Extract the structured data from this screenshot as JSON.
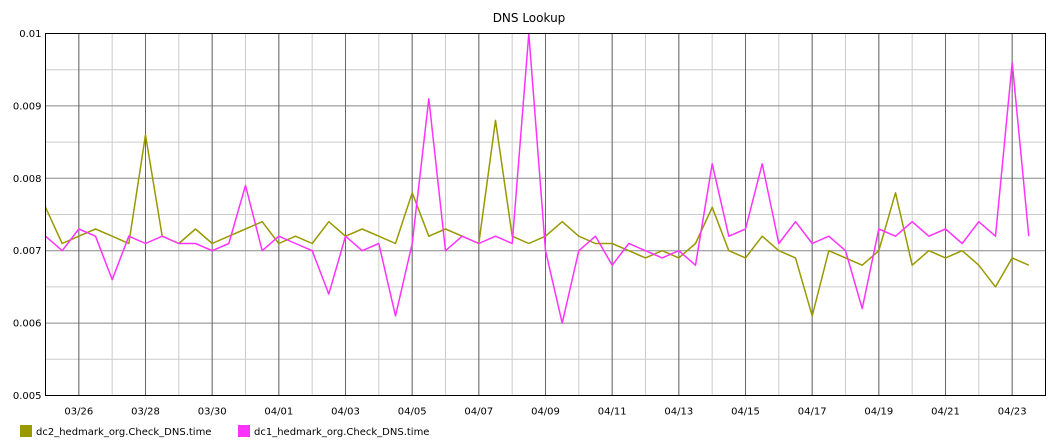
{
  "chart_data": {
    "type": "line",
    "title": "DNS Lookup",
    "xlabel": "",
    "ylabel": "",
    "ylim": [
      0.005,
      0.01
    ],
    "yticks": [
      "0.005",
      "0.006",
      "0.007",
      "0.008",
      "0.009",
      "0.01"
    ],
    "x_start": "2024-03-25",
    "x_end": "2024-04-23",
    "xticks": [
      "03/26",
      "03/28",
      "03/30",
      "04/01",
      "04/03",
      "04/05",
      "04/07",
      "04/09",
      "04/11",
      "04/13",
      "04/15",
      "04/17",
      "04/19",
      "04/21",
      "04/23"
    ],
    "grid": true,
    "legend_position": "bottom-left",
    "series": [
      {
        "name": "dc2_hedmark_org.Check_DNS.time",
        "color": "#999900",
        "x": [
          "03/25 00:00",
          "03/25 12:00",
          "03/26 00:00",
          "03/26 12:00",
          "03/27 00:00",
          "03/27 12:00",
          "03/28 00:00",
          "03/28 12:00",
          "03/29 00:00",
          "03/29 12:00",
          "03/30 00:00",
          "03/30 12:00",
          "03/31 00:00",
          "03/31 12:00",
          "04/01 00:00",
          "04/01 12:00",
          "04/02 00:00",
          "04/02 12:00",
          "04/03 00:00",
          "04/03 12:00",
          "04/04 00:00",
          "04/04 12:00",
          "04/05 00:00",
          "04/05 12:00",
          "04/06 00:00",
          "04/06 12:00",
          "04/07 00:00",
          "04/07 12:00",
          "04/08 00:00",
          "04/08 12:00",
          "04/09 00:00",
          "04/09 12:00",
          "04/10 00:00",
          "04/10 12:00",
          "04/11 00:00",
          "04/11 12:00",
          "04/12 00:00",
          "04/12 12:00",
          "04/13 00:00",
          "04/13 12:00",
          "04/14 00:00",
          "04/14 12:00",
          "04/15 00:00",
          "04/15 12:00",
          "04/16 00:00",
          "04/16 12:00",
          "04/17 00:00",
          "04/17 12:00",
          "04/18 00:00",
          "04/18 12:00",
          "04/19 00:00",
          "04/19 12:00",
          "04/20 00:00",
          "04/20 12:00",
          "04/21 00:00",
          "04/21 12:00",
          "04/22 00:00",
          "04/22 12:00",
          "04/23 00:00",
          "04/23 12:00"
        ],
        "values": [
          0.0076,
          0.0071,
          0.0072,
          0.0073,
          0.0072,
          0.0071,
          0.0086,
          0.0072,
          0.0071,
          0.0073,
          0.0071,
          0.0072,
          0.0073,
          0.0074,
          0.0071,
          0.0072,
          0.0071,
          0.0074,
          0.0072,
          0.0073,
          0.0072,
          0.0071,
          0.0078,
          0.0072,
          0.0073,
          0.0072,
          0.0071,
          0.0088,
          0.0072,
          0.0071,
          0.0072,
          0.0074,
          0.0072,
          0.0071,
          0.0071,
          0.007,
          0.0069,
          0.007,
          0.0069,
          0.0071,
          0.0076,
          0.007,
          0.0069,
          0.0072,
          0.007,
          0.0069,
          0.0061,
          0.007,
          0.0069,
          0.0068,
          0.007,
          0.0078,
          0.0068,
          0.007,
          0.0069,
          0.007,
          0.0068,
          0.0065,
          0.0069,
          0.0068
        ]
      },
      {
        "name": "dc1_hedmark_org.Check_DNS.time",
        "color": "#ff33ff",
        "x": [
          "03/25 00:00",
          "03/25 12:00",
          "03/26 00:00",
          "03/26 12:00",
          "03/27 00:00",
          "03/27 12:00",
          "03/28 00:00",
          "03/28 12:00",
          "03/29 00:00",
          "03/29 12:00",
          "03/30 00:00",
          "03/30 12:00",
          "03/31 00:00",
          "03/31 12:00",
          "04/01 00:00",
          "04/01 12:00",
          "04/02 00:00",
          "04/02 12:00",
          "04/03 00:00",
          "04/03 12:00",
          "04/04 00:00",
          "04/04 12:00",
          "04/05 00:00",
          "04/05 12:00",
          "04/06 00:00",
          "04/06 12:00",
          "04/07 00:00",
          "04/07 12:00",
          "04/08 00:00",
          "04/08 12:00",
          "04/09 00:00",
          "04/09 12:00",
          "04/10 00:00",
          "04/10 12:00",
          "04/11 00:00",
          "04/11 12:00",
          "04/12 00:00",
          "04/12 12:00",
          "04/13 00:00",
          "04/13 12:00",
          "04/14 00:00",
          "04/14 12:00",
          "04/15 00:00",
          "04/15 12:00",
          "04/16 00:00",
          "04/16 12:00",
          "04/17 00:00",
          "04/17 12:00",
          "04/18 00:00",
          "04/18 12:00",
          "04/19 00:00",
          "04/19 12:00",
          "04/20 00:00",
          "04/20 12:00",
          "04/21 00:00",
          "04/21 12:00",
          "04/22 00:00",
          "04/22 12:00",
          "04/23 00:00",
          "04/23 12:00"
        ],
        "values": [
          0.0072,
          0.007,
          0.0073,
          0.0072,
          0.0066,
          0.0072,
          0.0071,
          0.0072,
          0.0071,
          0.0071,
          0.007,
          0.0071,
          0.0079,
          0.007,
          0.0072,
          0.0071,
          0.007,
          0.0064,
          0.0072,
          0.007,
          0.0071,
          0.0061,
          0.0071,
          0.0091,
          0.007,
          0.0072,
          0.0071,
          0.0072,
          0.0071,
          0.01,
          0.007,
          0.006,
          0.007,
          0.0072,
          0.0068,
          0.0071,
          0.007,
          0.0069,
          0.007,
          0.0068,
          0.0082,
          0.0072,
          0.0073,
          0.0082,
          0.0071,
          0.0074,
          0.0071,
          0.0072,
          0.007,
          0.0062,
          0.0073,
          0.0072,
          0.0074,
          0.0072,
          0.0073,
          0.0071,
          0.0074,
          0.0072,
          0.0096,
          0.0072
        ]
      }
    ]
  }
}
